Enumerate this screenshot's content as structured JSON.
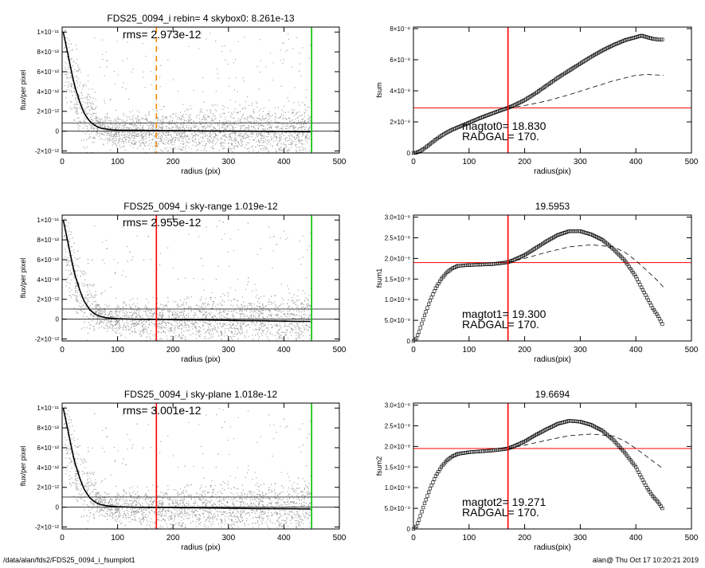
{
  "footer": {
    "path": "/data/alan/fds2/FDS25_0094_i_fsumplot1",
    "stamp": "alan@  Thu Oct 17 10:20:21 2019"
  },
  "colors": {
    "sky_line": "#ff0000",
    "edge_line": "#00c000",
    "orange_line": "#ff8800",
    "points": "#9a9a9a"
  },
  "chart_data": [
    {
      "type": "scatter",
      "title": "FDS25_0094_i rebin= 4    skybox0:  8.261e-13",
      "annotation": "rms= 2.973e-12",
      "xlabel": "radius (pix)",
      "ylabel": "flux/per pixel",
      "xlim": [
        0,
        500
      ],
      "ylim": [
        -2.2e-12,
        1.05e-11
      ],
      "xticks": [
        0,
        100,
        200,
        300,
        400,
        500
      ],
      "xtick_labels": [
        "0",
        "100",
        "200",
        "300",
        "400",
        "500"
      ],
      "yticks": [
        -2e-12,
        0,
        2e-12,
        4e-12,
        6e-12,
        8e-12,
        1e-11
      ],
      "ytick_labels": [
        "-2×10⁻¹²",
        "0",
        "2×10⁻¹²",
        "4×10⁻¹²",
        "6×10⁻¹²",
        "8×10⁻¹²",
        "1×10⁻¹¹"
      ],
      "vlines": [
        {
          "x": 170,
          "color": "#ff8800",
          "style": "dashed"
        },
        {
          "x": 450,
          "color": "#00c000",
          "style": "solid"
        }
      ],
      "hlines": [
        {
          "y": 0
        },
        {
          "y": 8.261e-13
        }
      ],
      "profile": {
        "x": [
          2,
          5,
          8,
          11,
          14,
          17,
          20,
          24,
          28,
          32,
          36,
          40,
          45,
          50,
          55,
          60,
          65,
          70,
          80,
          90,
          100,
          120,
          140,
          160,
          180,
          200,
          220,
          250,
          280,
          300,
          320,
          350,
          380,
          400,
          420,
          440,
          448
        ],
        "y": [
          1e-11,
          9.2e-12,
          8.4e-12,
          7.6e-12,
          6.8e-12,
          6e-12,
          5.2e-12,
          4.3e-12,
          3.6e-12,
          2.9e-12,
          2.3e-12,
          1.8e-12,
          1.35e-12,
          1e-12,
          7.5e-13,
          5.5e-13,
          4e-13,
          3e-13,
          2e-13,
          1.4e-13,
          1.1e-13,
          9e-14,
          8e-14,
          7e-14,
          6e-14,
          5e-14,
          4e-14,
          3e-14,
          2e-14,
          1e-14,
          0,
          -1e-14,
          -2e-14,
          -3e-14,
          -5e-14,
          -5e-14,
          -5e-14
        ]
      }
    },
    {
      "type": "scatter",
      "title": "",
      "annotation": "magtot0=  18.830",
      "annotation2": "RADGAL=    170.",
      "xlabel": "radius(pix)",
      "ylabel": "fsum",
      "xlim": [
        0,
        500
      ],
      "ylim": [
        0,
        8.1e-08
      ],
      "xticks": [
        0,
        100,
        200,
        300,
        400,
        500
      ],
      "xtick_labels": [
        "0",
        "100",
        "200",
        "300",
        "400",
        "500"
      ],
      "yticks": [
        0,
        2e-08,
        4e-08,
        6e-08,
        8e-08
      ],
      "ytick_labels": [
        "0",
        "2×10⁻⁸",
        "4×10⁻⁸",
        "6×10⁻⁸",
        "8×10⁻⁸"
      ],
      "vlines": [
        {
          "x": 170,
          "color": "#ff0000",
          "style": "solid"
        }
      ],
      "hlines": [
        {
          "y": 2.9e-08,
          "color": "#ff0000"
        }
      ],
      "markers": {
        "x": [
          0,
          5,
          10,
          15,
          20,
          30,
          40,
          50,
          60,
          70,
          80,
          100,
          120,
          140,
          160,
          170,
          180,
          200,
          220,
          240,
          260,
          280,
          300,
          320,
          340,
          360,
          380,
          400,
          410,
          420,
          430,
          440,
          450
        ],
        "y": [
          0,
          2e-10,
          8e-10,
          1.8e-09,
          3e-09,
          5.8e-09,
          8.6e-09,
          1.1e-08,
          1.32e-08,
          1.5e-08,
          1.65e-08,
          1.95e-08,
          2.25e-08,
          2.52e-08,
          2.78e-08,
          2.9e-08,
          3.05e-08,
          3.4e-08,
          3.85e-08,
          4.35e-08,
          4.85e-08,
          5.3e-08,
          5.75e-08,
          6.2e-08,
          6.6e-08,
          6.95e-08,
          7.25e-08,
          7.45e-08,
          7.55e-08,
          7.45e-08,
          7.35e-08,
          7.3e-08,
          7.3e-08
        ]
      },
      "dashed": {
        "x": [
          170,
          200,
          240,
          280,
          320,
          360,
          400,
          420,
          450
        ],
        "y": [
          2.9e-08,
          3.05e-08,
          3.35e-08,
          3.75e-08,
          4.2e-08,
          4.65e-08,
          5e-08,
          5.05e-08,
          5e-08
        ]
      }
    },
    {
      "type": "scatter",
      "title": "FDS25_0094_i sky-range  1.019e-12",
      "annotation": "rms= 2.955e-12",
      "xlabel": "radius (pix)",
      "ylabel": "flux/per pixel",
      "xlim": [
        0,
        500
      ],
      "ylim": [
        -2.2e-12,
        1.05e-11
      ],
      "xticks": [
        0,
        100,
        200,
        300,
        400,
        500
      ],
      "xtick_labels": [
        "0",
        "100",
        "200",
        "300",
        "400",
        "500"
      ],
      "yticks": [
        -2e-12,
        0,
        2e-12,
        4e-12,
        6e-12,
        8e-12,
        1e-11
      ],
      "ytick_labels": [
        "-2×10⁻¹²",
        "0",
        "2×10⁻¹²",
        "4×10⁻¹²",
        "6×10⁻¹²",
        "8×10⁻¹²",
        "1×10⁻¹¹"
      ],
      "vlines": [
        {
          "x": 170,
          "color": "#ff0000",
          "style": "solid"
        },
        {
          "x": 450,
          "color": "#00c000",
          "style": "solid"
        }
      ],
      "hlines": [
        {
          "y": 0
        },
        {
          "y": 1.019e-12
        }
      ],
      "profile": {
        "x": [
          2,
          5,
          8,
          11,
          14,
          17,
          20,
          24,
          28,
          32,
          36,
          40,
          45,
          50,
          55,
          60,
          65,
          70,
          80,
          90,
          100,
          120,
          140,
          160,
          180,
          200,
          220,
          250,
          280,
          300,
          320,
          350,
          380,
          400,
          420,
          440,
          448
        ],
        "y": [
          1e-11,
          9.2e-12,
          8.4e-12,
          7.6e-12,
          6.8e-12,
          6e-12,
          5.2e-12,
          4.3e-12,
          3.6e-12,
          2.9e-12,
          2.3e-12,
          1.8e-12,
          1.35e-12,
          9.5e-13,
          7e-13,
          5e-13,
          3.5e-13,
          2.5e-13,
          1.5e-13,
          8e-14,
          4e-14,
          1e-14,
          -1e-14,
          -2e-14,
          -3e-14,
          -5e-14,
          -6e-14,
          -8e-14,
          -1e-13,
          -1.2e-13,
          -1.4e-13,
          -1.6e-13,
          -1.8e-13,
          -2e-13,
          -2.2e-13,
          -2.3e-13,
          -2.3e-13
        ]
      }
    },
    {
      "type": "scatter",
      "title": "19.5953",
      "annotation": "magtot1=  19.300",
      "annotation2": "RADGAL=    170.",
      "xlabel": "radius(pix)",
      "ylabel": "fsum1",
      "xlim": [
        0,
        500
      ],
      "ylim": [
        0,
        3.05e-08
      ],
      "xticks": [
        0,
        100,
        200,
        300,
        400,
        500
      ],
      "xtick_labels": [
        "0",
        "100",
        "200",
        "300",
        "400",
        "500"
      ],
      "yticks": [
        0,
        5e-09,
        1e-08,
        1.5e-08,
        2e-08,
        2.5e-08,
        3e-08
      ],
      "ytick_labels": [
        "0",
        "5.0×10⁻⁹",
        "1.0×10⁻⁸",
        "1.5×10⁻⁸",
        "2.0×10⁻⁸",
        "2.5×10⁻⁸",
        "3.0×10⁻⁸"
      ],
      "vlines": [
        {
          "x": 170,
          "color": "#ff0000",
          "style": "solid"
        }
      ],
      "hlines": [
        {
          "y": 1.9e-08,
          "color": "#ff0000"
        }
      ],
      "markers": {
        "x": [
          0,
          5,
          10,
          15,
          20,
          25,
          30,
          40,
          50,
          60,
          70,
          80,
          100,
          120,
          140,
          160,
          170,
          180,
          200,
          220,
          240,
          260,
          280,
          300,
          320,
          340,
          360,
          380,
          400,
          410,
          420,
          430,
          440,
          450
        ],
        "y": [
          0,
          6e-10,
          2.2e-09,
          4.2e-09,
          6.2e-09,
          8e-09,
          9.8e-09,
          1.28e-08,
          1.5e-08,
          1.66e-08,
          1.76e-08,
          1.82e-08,
          1.84e-08,
          1.85e-08,
          1.86e-08,
          1.89e-08,
          1.91e-08,
          1.96e-08,
          2.08e-08,
          2.25e-08,
          2.42e-08,
          2.57e-08,
          2.66e-08,
          2.66e-08,
          2.58e-08,
          2.45e-08,
          2.22e-08,
          1.95e-08,
          1.56e-08,
          1.3e-08,
          1.05e-08,
          8e-09,
          6e-09,
          3.5e-09
        ]
      },
      "dashed": {
        "x": [
          170,
          200,
          240,
          280,
          320,
          360,
          380,
          400,
          420,
          440,
          450
        ],
        "y": [
          1.91e-08,
          2e-08,
          2.15e-08,
          2.28e-08,
          2.33e-08,
          2.28e-08,
          2.15e-08,
          1.95e-08,
          1.7e-08,
          1.45e-08,
          1.3e-08
        ]
      }
    },
    {
      "type": "scatter",
      "title": "FDS25_0094_i sky-plane  1.018e-12",
      "annotation": "rms= 3.001e-12",
      "xlabel": "radius (pix)",
      "ylabel": "flux/per pixel",
      "xlim": [
        0,
        500
      ],
      "ylim": [
        -2.2e-12,
        1.05e-11
      ],
      "xticks": [
        0,
        100,
        200,
        300,
        400,
        500
      ],
      "xtick_labels": [
        "0",
        "100",
        "200",
        "300",
        "400",
        "500"
      ],
      "yticks": [
        -2e-12,
        0,
        2e-12,
        4e-12,
        6e-12,
        8e-12,
        1e-11
      ],
      "ytick_labels": [
        "-2×10⁻¹²",
        "0",
        "2×10⁻¹²",
        "4×10⁻¹²",
        "6×10⁻¹²",
        "8×10⁻¹²",
        "1×10⁻¹¹"
      ],
      "vlines": [
        {
          "x": 170,
          "color": "#ff0000",
          "style": "solid"
        },
        {
          "x": 450,
          "color": "#00c000",
          "style": "solid"
        }
      ],
      "hlines": [
        {
          "y": 0
        },
        {
          "y": 1.018e-12
        }
      ],
      "profile": {
        "x": [
          2,
          5,
          8,
          11,
          14,
          17,
          20,
          24,
          28,
          32,
          36,
          40,
          45,
          50,
          55,
          60,
          65,
          70,
          80,
          90,
          100,
          120,
          140,
          160,
          180,
          200,
          220,
          250,
          280,
          300,
          320,
          350,
          380,
          400,
          420,
          440,
          448
        ],
        "y": [
          1e-11,
          9.2e-12,
          8.4e-12,
          7.6e-12,
          6.8e-12,
          6e-12,
          5.2e-12,
          4.3e-12,
          3.6e-12,
          2.9e-12,
          2.3e-12,
          1.8e-12,
          1.35e-12,
          9.5e-13,
          7e-13,
          5e-13,
          3.5e-13,
          2.5e-13,
          1.5e-13,
          8e-14,
          4e-14,
          1e-14,
          -1e-14,
          -2e-14,
          -3e-14,
          -4e-14,
          -5e-14,
          -7e-14,
          -9e-14,
          -1e-13,
          -1.2e-13,
          -1.4e-13,
          -1.5e-13,
          -1.6e-13,
          -1.7e-13,
          -1.8e-13,
          -1.8e-13
        ]
      }
    },
    {
      "type": "scatter",
      "title": "19.6694",
      "annotation": "magtot2=  19.271",
      "annotation2": "RADGAL=    170.",
      "xlabel": "radius(pix)",
      "ylabel": "fsum2",
      "xlim": [
        0,
        500
      ],
      "ylim": [
        0,
        3.05e-08
      ],
      "xticks": [
        0,
        100,
        200,
        300,
        400,
        500
      ],
      "xtick_labels": [
        "0",
        "100",
        "200",
        "300",
        "400",
        "500"
      ],
      "yticks": [
        0,
        5e-09,
        1e-08,
        1.5e-08,
        2e-08,
        2.5e-08,
        3e-08
      ],
      "ytick_labels": [
        "0",
        "5.0×10⁻⁹",
        "1.0×10⁻⁸",
        "1.5×10⁻⁸",
        "2.0×10⁻⁸",
        "2.5×10⁻⁸",
        "3.0×10⁻⁸"
      ],
      "vlines": [
        {
          "x": 170,
          "color": "#ff0000",
          "style": "solid"
        }
      ],
      "hlines": [
        {
          "y": 1.95e-08,
          "color": "#ff0000"
        }
      ],
      "markers": {
        "x": [
          0,
          5,
          10,
          15,
          20,
          25,
          30,
          40,
          50,
          60,
          70,
          80,
          100,
          120,
          140,
          160,
          170,
          180,
          200,
          220,
          240,
          260,
          280,
          300,
          320,
          340,
          360,
          380,
          400,
          410,
          420,
          430,
          440,
          450
        ],
        "y": [
          0,
          6e-10,
          2.2e-09,
          4.2e-09,
          6.2e-09,
          8e-09,
          9.8e-09,
          1.28e-08,
          1.5e-08,
          1.66e-08,
          1.76e-08,
          1.82e-08,
          1.86e-08,
          1.88e-08,
          1.9e-08,
          1.93e-08,
          1.95e-08,
          2e-08,
          2.12e-08,
          2.28e-08,
          2.42e-08,
          2.55e-08,
          2.62e-08,
          2.6e-08,
          2.52e-08,
          2.38e-08,
          2.15e-08,
          1.85e-08,
          1.5e-08,
          1.25e-08,
          1e-08,
          8e-09,
          6.5e-09,
          4.5e-09
        ]
      },
      "dashed": {
        "x": [
          170,
          200,
          240,
          280,
          320,
          360,
          380,
          400,
          420,
          440,
          450
        ],
        "y": [
          1.95e-08,
          2.03e-08,
          2.15e-08,
          2.26e-08,
          2.3e-08,
          2.25e-08,
          2.13e-08,
          1.95e-08,
          1.75e-08,
          1.55e-08,
          1.45e-08
        ]
      }
    }
  ]
}
